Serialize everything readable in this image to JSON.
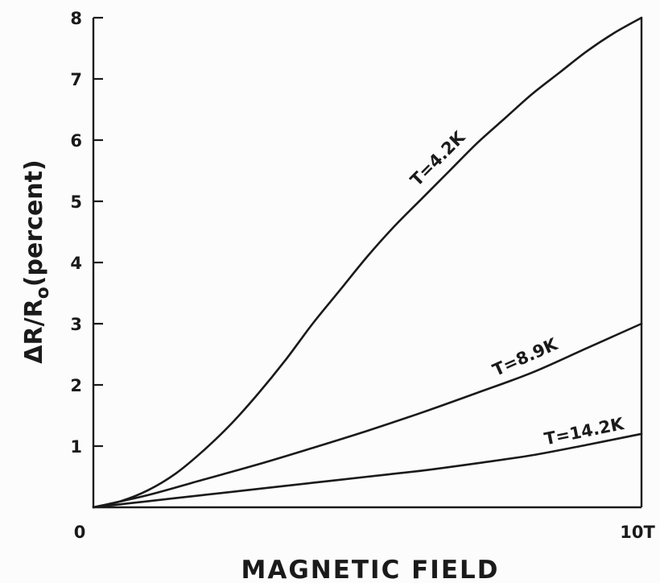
{
  "chart_data": {
    "type": "line",
    "title": "",
    "xlabel": "MAGNETIC FIELD",
    "ylabel": "ΔR/R",
    "ylabel_subscript": "o",
    "ylabel_suffix": "(percent)",
    "xlim": [
      0,
      10
    ],
    "ylim": [
      0,
      8
    ],
    "x_tick_labels": [
      "0",
      "10T"
    ],
    "y_ticks": [
      1,
      2,
      3,
      4,
      5,
      6,
      7,
      8
    ],
    "y_tick_labels": [
      "1",
      "2",
      "3",
      "4",
      "5",
      "6",
      "7",
      "8"
    ],
    "grid": false,
    "series": [
      {
        "name": "T=4.2K",
        "x": [
          0,
          0.5,
          1,
          1.5,
          2,
          2.5,
          3,
          3.5,
          4,
          4.5,
          5,
          5.5,
          6,
          6.5,
          7,
          7.5,
          8,
          8.5,
          9,
          9.5,
          10
        ],
        "values": [
          0,
          0.1,
          0.28,
          0.55,
          0.92,
          1.35,
          1.85,
          2.4,
          3.0,
          3.55,
          4.1,
          4.6,
          5.05,
          5.5,
          5.95,
          6.35,
          6.75,
          7.1,
          7.45,
          7.75,
          8.0
        ]
      },
      {
        "name": "T=8.9K",
        "x": [
          0,
          1,
          2,
          3,
          4,
          5,
          6,
          7,
          8,
          9,
          10
        ],
        "values": [
          0,
          0.2,
          0.45,
          0.7,
          0.97,
          1.25,
          1.55,
          1.87,
          2.2,
          2.6,
          3.0
        ]
      },
      {
        "name": "T=14.2K",
        "x": [
          0,
          1,
          2,
          3,
          4,
          5,
          6,
          7,
          8,
          9,
          10
        ],
        "values": [
          0,
          0.1,
          0.2,
          0.3,
          0.4,
          0.5,
          0.6,
          0.72,
          0.85,
          1.02,
          1.2
        ]
      }
    ]
  }
}
